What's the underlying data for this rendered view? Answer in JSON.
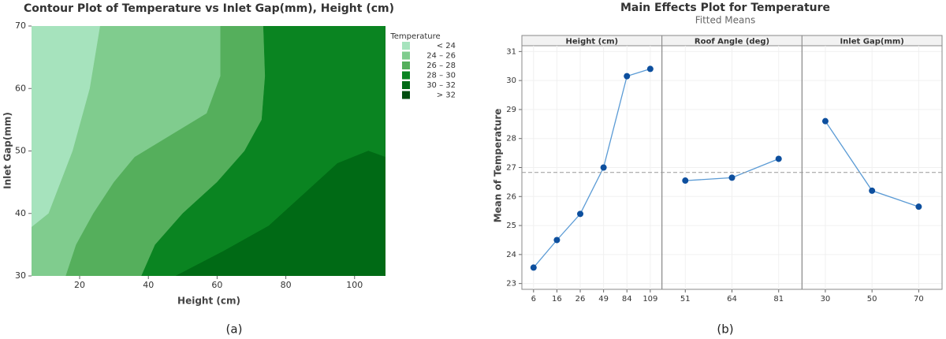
{
  "chart_data": [
    {
      "type": "contour",
      "title": "Contour Plot of Temperature vs Inlet Gap(mm), Height (cm)",
      "xlabel": "Height (cm)",
      "ylabel": "Inlet Gap(mm)",
      "xlim": [
        6,
        109
      ],
      "ylim": [
        30,
        70
      ],
      "xticks": [
        20,
        40,
        60,
        80,
        100
      ],
      "yticks": [
        30,
        40,
        50,
        60,
        70
      ],
      "legend_title": "Temperature",
      "legend": [
        {
          "label": "< 24",
          "color": "#a6e3bd"
        },
        {
          "label": "24 – 26",
          "color": "#80cc8e"
        },
        {
          "label": "26 – 28",
          "color": "#55af5c"
        },
        {
          "label": "28 – 30",
          "color": "#0a8421"
        },
        {
          "label": "30 – 32",
          "color": "#006a15"
        },
        {
          "label": "> 32",
          "color": "#004d0f"
        }
      ],
      "contours": [
        {
          "x": [
            26,
            23,
            18,
            11,
            6
          ],
          "y": [
            70,
            60,
            50,
            40,
            37.8
          ]
        },
        {
          "x": [
            61,
            61,
            57,
            45,
            36,
            30,
            24,
            19,
            16
          ],
          "y": [
            70,
            62,
            56,
            52,
            49,
            45,
            40,
            35,
            30
          ]
        },
        {
          "x": [
            73.5,
            74,
            73,
            68,
            60,
            50,
            42,
            38
          ],
          "y": [
            70,
            62,
            55,
            50,
            45,
            40,
            35,
            30
          ]
        },
        {
          "x": [
            109,
            104,
            95,
            85,
            75,
            62,
            48
          ],
          "y": [
            49,
            50,
            48,
            43,
            38,
            34,
            30
          ]
        }
      ],
      "caption": "(a)"
    },
    {
      "type": "main-effects",
      "title": "Main Effects Plot for Temperature",
      "subtitle": "Fitted Means",
      "ylabel": "Mean of Temperature",
      "ylim": [
        22.8,
        31.2
      ],
      "yticks": [
        23,
        24,
        25,
        26,
        27,
        28,
        29,
        30,
        31
      ],
      "reference": 26.83,
      "color": "#5b9bd5",
      "marker_color": "#0d4f9e",
      "panels": [
        {
          "name": "Height (cm)",
          "categories": [
            "6",
            "16",
            "26",
            "49",
            "84",
            "109"
          ],
          "values": [
            23.55,
            24.5,
            25.4,
            27.0,
            30.15,
            30.4
          ]
        },
        {
          "name": "Roof Angle (deg)",
          "categories": [
            "51",
            "64",
            "81"
          ],
          "values": [
            26.55,
            26.65,
            27.3
          ]
        },
        {
          "name": "Inlet Gap(mm)",
          "categories": [
            "30",
            "50",
            "70"
          ],
          "values": [
            28.6,
            26.2,
            25.65
          ]
        }
      ],
      "caption": "(b)"
    }
  ]
}
